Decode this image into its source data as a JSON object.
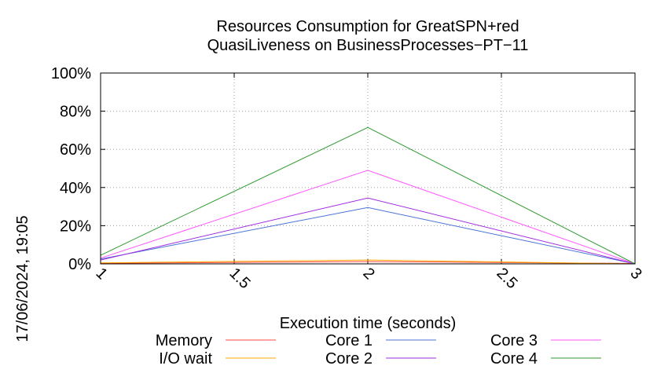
{
  "chart_data": {
    "type": "line",
    "title_line1": "Resources Consumption for GreatSPN+red",
    "title_line2": "QuasiLiveness on BusinessProcesses−PT−11",
    "xlabel": "Execution time (seconds)",
    "ylabel": "",
    "side_label": "17/06/2024, 19:05",
    "xlim": [
      1,
      3
    ],
    "ylim": [
      0,
      100
    ],
    "x_ticks": [
      1,
      1.5,
      2,
      2.5,
      3
    ],
    "x_tick_labels": [
      "1",
      "1.5",
      "2",
      "2.5",
      "3"
    ],
    "y_ticks": [
      0,
      20,
      40,
      60,
      80,
      100
    ],
    "y_tick_labels": [
      "0%",
      "20%",
      "40%",
      "60%",
      "80%",
      "100%"
    ],
    "grid": true,
    "legend_position": "bottom",
    "x": [
      1,
      2,
      3
    ],
    "series": [
      {
        "name": "Memory",
        "color": "#ff4a3c",
        "values": [
          0.3,
          1.2,
          0.2
        ]
      },
      {
        "name": "I/O wait",
        "color": "#ffa500",
        "values": [
          0.5,
          2.0,
          0.0
        ]
      },
      {
        "name": "Core 1",
        "color": "#4a72d6",
        "values": [
          2.5,
          29.5,
          0.0
        ]
      },
      {
        "name": "Core 2",
        "color": "#a12de0",
        "values": [
          2.0,
          34.5,
          0.0
        ]
      },
      {
        "name": "Core 3",
        "color": "#ff55ff",
        "values": [
          3.0,
          49.0,
          0.0
        ]
      },
      {
        "name": "Core 4",
        "color": "#2e9a2e",
        "values": [
          4.5,
          71.5,
          0.0
        ]
      }
    ]
  }
}
